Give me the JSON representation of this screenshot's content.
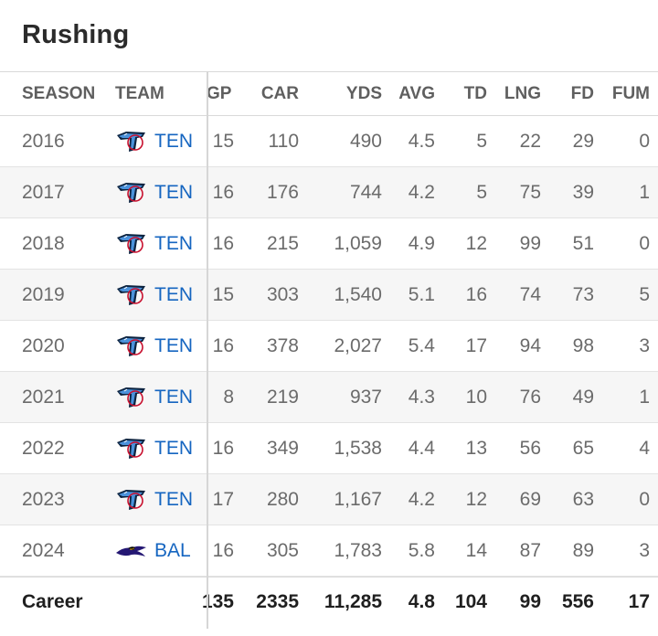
{
  "title": "Rushing",
  "columns": [
    "SEASON",
    "TEAM",
    "GP",
    "CAR",
    "YDS",
    "AVG",
    "TD",
    "LNG",
    "FD",
    "FUM"
  ],
  "rows": [
    {
      "season": "2016",
      "team": "TEN",
      "logo": "titans-logo-icon",
      "gp": "15",
      "car": "110",
      "yds": "490",
      "avg": "4.5",
      "td": "5",
      "lng": "22",
      "fd": "29",
      "fum": "0"
    },
    {
      "season": "2017",
      "team": "TEN",
      "logo": "titans-logo-icon",
      "gp": "16",
      "car": "176",
      "yds": "744",
      "avg": "4.2",
      "td": "5",
      "lng": "75",
      "fd": "39",
      "fum": "1"
    },
    {
      "season": "2018",
      "team": "TEN",
      "logo": "titans-logo-icon",
      "gp": "16",
      "car": "215",
      "yds": "1,059",
      "avg": "4.9",
      "td": "12",
      "lng": "99",
      "fd": "51",
      "fum": "0"
    },
    {
      "season": "2019",
      "team": "TEN",
      "logo": "titans-logo-icon",
      "gp": "15",
      "car": "303",
      "yds": "1,540",
      "avg": "5.1",
      "td": "16",
      "lng": "74",
      "fd": "73",
      "fum": "5"
    },
    {
      "season": "2020",
      "team": "TEN",
      "logo": "titans-logo-icon",
      "gp": "16",
      "car": "378",
      "yds": "2,027",
      "avg": "5.4",
      "td": "17",
      "lng": "94",
      "fd": "98",
      "fum": "3"
    },
    {
      "season": "2021",
      "team": "TEN",
      "logo": "titans-logo-icon",
      "gp": "8",
      "car": "219",
      "yds": "937",
      "avg": "4.3",
      "td": "10",
      "lng": "76",
      "fd": "49",
      "fum": "1"
    },
    {
      "season": "2022",
      "team": "TEN",
      "logo": "titans-logo-icon",
      "gp": "16",
      "car": "349",
      "yds": "1,538",
      "avg": "4.4",
      "td": "13",
      "lng": "56",
      "fd": "65",
      "fum": "4"
    },
    {
      "season": "2023",
      "team": "TEN",
      "logo": "titans-logo-icon",
      "gp": "17",
      "car": "280",
      "yds": "1,167",
      "avg": "4.2",
      "td": "12",
      "lng": "69",
      "fd": "63",
      "fum": "0"
    },
    {
      "season": "2024",
      "team": "BAL",
      "logo": "ravens-logo-icon",
      "gp": "16",
      "car": "305",
      "yds": "1,783",
      "avg": "5.8",
      "td": "14",
      "lng": "87",
      "fd": "89",
      "fum": "3"
    }
  ],
  "career": {
    "label": "Career",
    "gp": "135",
    "car": "2335",
    "yds": "11,285",
    "avg": "4.8",
    "td": "104",
    "lng": "99",
    "fd": "556",
    "fum": "17"
  },
  "colors": {
    "link": "#1565c0",
    "titans_navy": "#0c2340",
    "titans_blue": "#4b92db",
    "ravens_purple": "#241773",
    "ravens_gold": "#9e7c0c"
  }
}
